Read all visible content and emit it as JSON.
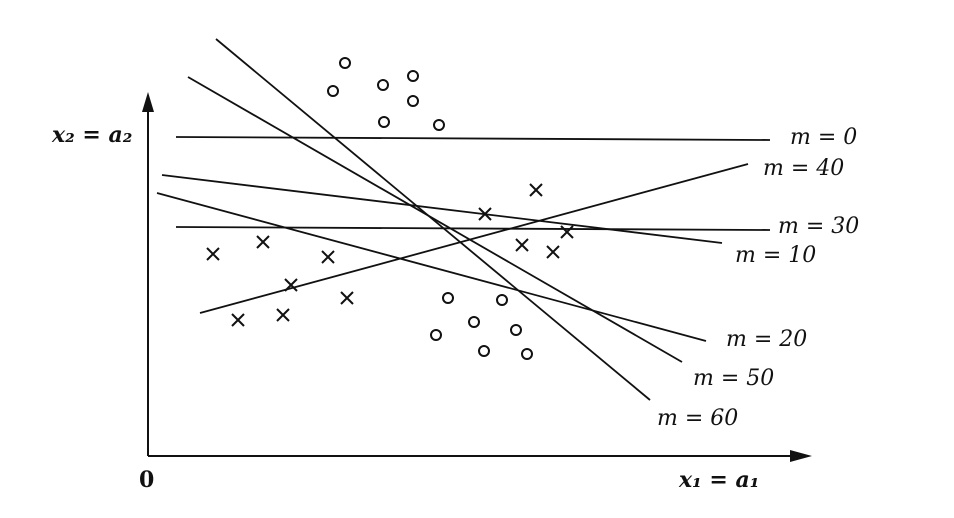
{
  "diagram": {
    "y_axis_label": "x₂ = a₂",
    "x_axis_label": "x₁ = a₁",
    "origin_label": "0",
    "line_labels": {
      "m0": "m = 0",
      "m10": "m = 10",
      "m20": "m = 20",
      "m30": "m = 30",
      "m40": "m = 40",
      "m50": "m = 50",
      "m60": "m = 60"
    },
    "markers": {
      "circle": "circle",
      "cross": "cross"
    }
  }
}
